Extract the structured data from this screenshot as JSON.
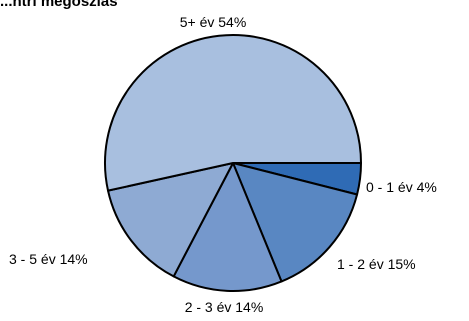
{
  "chart_data": {
    "type": "pie",
    "title": "...ntri megoszlás",
    "unit": "%",
    "start_angle_deg": 0,
    "direction": "clockwise",
    "slices": [
      {
        "label": "0 - 1 év",
        "value": 4,
        "display": "0 - 1 év 4%",
        "color": "#2f6bb5"
      },
      {
        "label": "1 - 2 év",
        "value": 15,
        "display": "1 - 2 év 15%",
        "color": "#5987c2"
      },
      {
        "label": "2 - 3 év",
        "value": 14,
        "display": "2 - 3 év 14%",
        "color": "#7598cc"
      },
      {
        "label": "3 - 5 év",
        "value": 14,
        "display": "3 - 5 év 14%",
        "color": "#8eaad3"
      },
      {
        "label": "5+ év",
        "value": 54,
        "display": "5+ év 54%",
        "color": "#a8bfdf"
      }
    ],
    "slice_border_color": "#000000",
    "legend": "none"
  }
}
